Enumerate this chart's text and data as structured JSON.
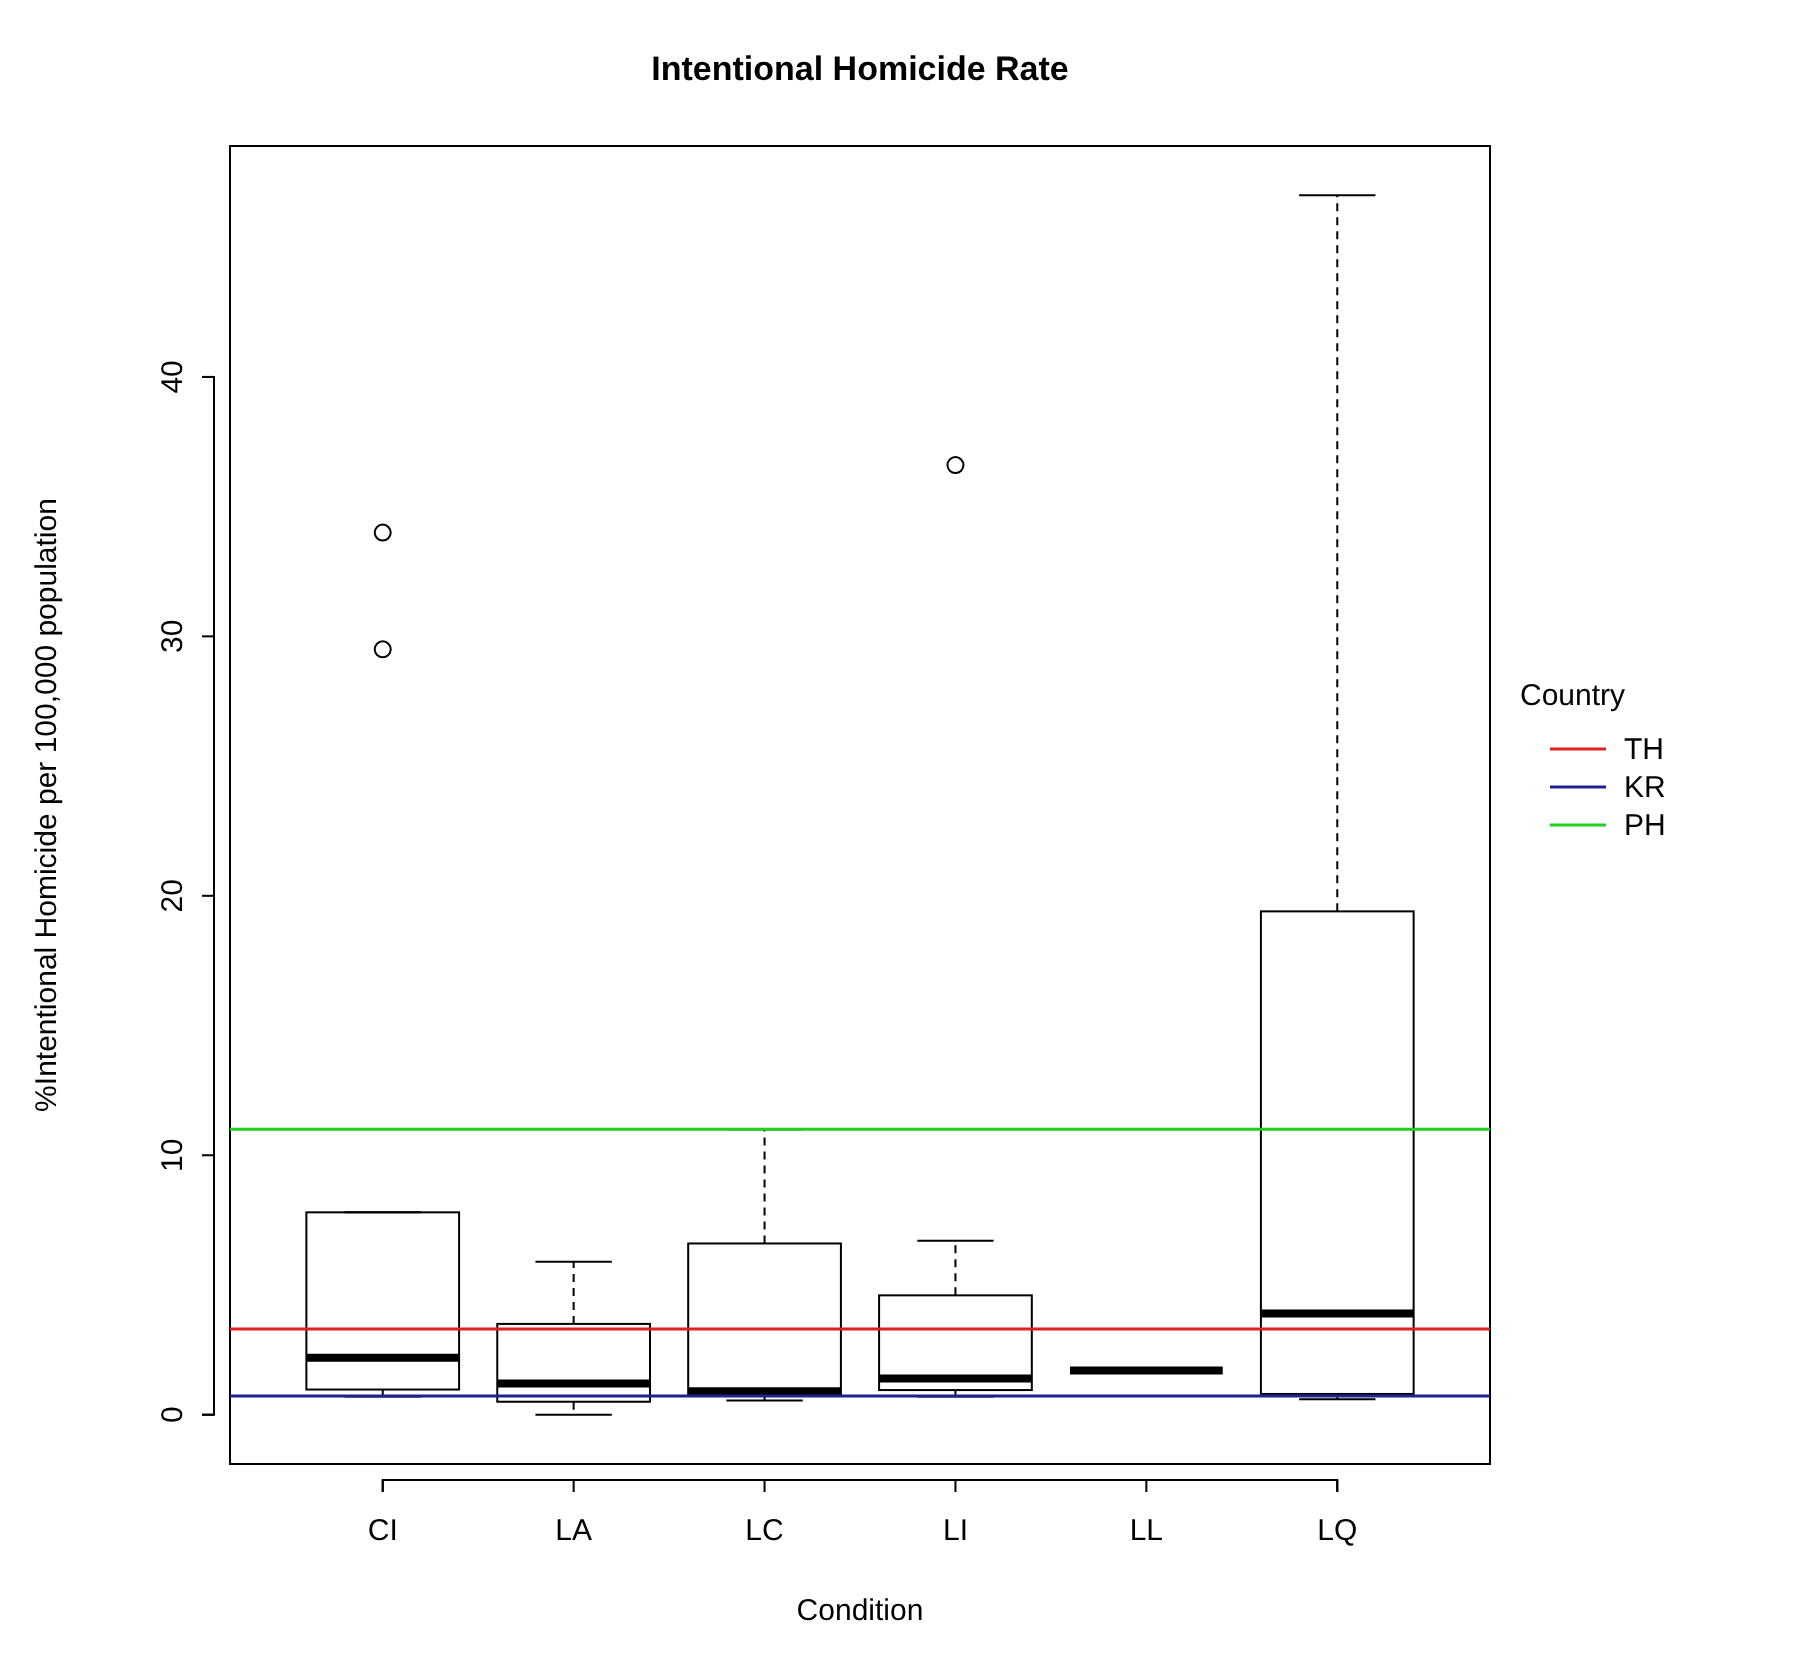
{
  "chart_data": {
    "type": "box",
    "title": "Intentional Homicide Rate",
    "xlabel": "Condition",
    "ylabel": "%Intentional Homicide per 100,000 population",
    "legend_title": "Country",
    "categories": [
      "CI",
      "LA",
      "LC",
      "LI",
      "LL",
      "LQ"
    ],
    "boxes": [
      {
        "low": 0.7,
        "q1": 0.97,
        "median": 2.2,
        "q3": 7.8,
        "high": 7.8,
        "outliers": [
          34.0,
          29.5
        ]
      },
      {
        "low": 0.0,
        "q1": 0.5,
        "median": 1.2,
        "q3": 3.5,
        "high": 5.9
      },
      {
        "low": 0.55,
        "q1": 0.8,
        "median": 0.9,
        "q3": 6.6,
        "high": 11.0
      },
      {
        "low": 0.7,
        "q1": 0.95,
        "median": 1.4,
        "q3": 4.6,
        "high": 6.7,
        "outliers": [
          36.6
        ]
      },
      {
        "low": 1.7,
        "q1": 1.7,
        "median": 1.7,
        "q3": 1.7,
        "high": 1.7
      },
      {
        "low": 0.6,
        "q1": 0.8,
        "median": 3.9,
        "q3": 19.4,
        "high": 47.0
      }
    ],
    "ref_lines": [
      {
        "axis": "y",
        "value": 3.3,
        "label": "TH",
        "color": "#df2020"
      },
      {
        "axis": "y",
        "value": 0.72,
        "label": "KR",
        "color": "#202090"
      },
      {
        "axis": "y",
        "value": 11.0,
        "label": "PH",
        "color": "#20d020"
      }
    ],
    "ylim": [
      -1.9,
      48.9
    ],
    "yticks": [
      0,
      10,
      20,
      30,
      40
    ],
    "legend": "right"
  }
}
